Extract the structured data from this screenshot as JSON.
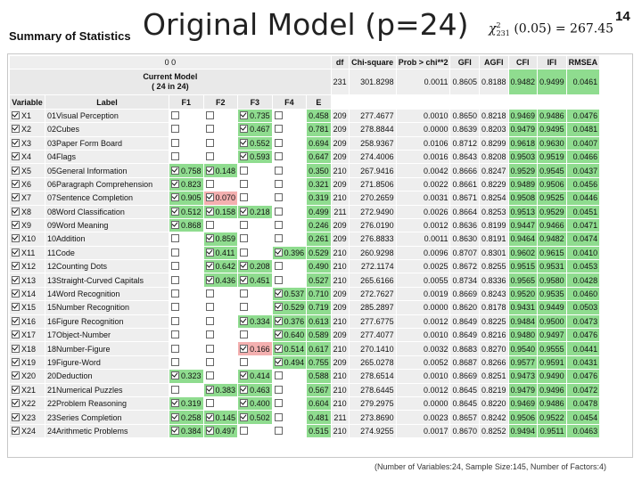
{
  "slide": {
    "title": "Original Model (p=24)",
    "page_number": "14"
  },
  "panel": {
    "title": "Summary of Statistics"
  },
  "formula": {
    "chi": "χ",
    "sub": "231",
    "sup": "2",
    "rest": "(0.05) = 267.45"
  },
  "header": {
    "row00": "0 0",
    "current_model": "Current Model",
    "current_model_sub": "( 24 in 24)",
    "variable": "Variable",
    "label": "Label",
    "factors": [
      "F1",
      "F2",
      "F3",
      "F4"
    ],
    "e": "E",
    "stat_cols": [
      "df",
      "Chi-square",
      "Prob > chi**2",
      "GFI",
      "AGFI",
      "CFI",
      "IFI",
      "RMSEA"
    ]
  },
  "current": {
    "df": "231",
    "chi": "301.8298",
    "prob": "0.0011",
    "gfi": "0.8605",
    "agfi": "0.8188",
    "cfi": "0.9482",
    "ifi": "0.9499",
    "rmsea": "0.0461"
  },
  "rows": [
    {
      "var": "X1",
      "label": "01Visual Perception",
      "f": [
        "",
        "",
        "0.735",
        ""
      ],
      "e": "0.458",
      "df": "209",
      "chi": "277.4677",
      "prob": "0.0010",
      "gfi": "0.8650",
      "agfi": "0.8218",
      "cfi": "0.9469",
      "ifi": "0.9486",
      "rmsea": "0.0476"
    },
    {
      "var": "X2",
      "label": "02Cubes",
      "f": [
        "",
        "",
        "0.467",
        ""
      ],
      "e": "0.781",
      "df": "209",
      "chi": "278.8844",
      "prob": "0.0000",
      "gfi": "0.8639",
      "agfi": "0.8203",
      "cfi": "0.9479",
      "ifi": "0.9495",
      "rmsea": "0.0481"
    },
    {
      "var": "X3",
      "label": "03Paper Form Board",
      "f": [
        "",
        "",
        "0.552",
        ""
      ],
      "e": "0.694",
      "df": "209",
      "chi": "258.9367",
      "prob": "0.0106",
      "gfi": "0.8712",
      "agfi": "0.8299",
      "cfi": "0.9618",
      "ifi": "0.9630",
      "rmsea": "0.0407"
    },
    {
      "var": "X4",
      "label": "04Flags",
      "f": [
        "",
        "",
        "0.593",
        ""
      ],
      "e": "0.647",
      "df": "209",
      "chi": "274.4006",
      "prob": "0.0016",
      "gfi": "0.8643",
      "agfi": "0.8208",
      "cfi": "0.9503",
      "ifi": "0.9519",
      "rmsea": "0.0466"
    },
    {
      "var": "X5",
      "label": "05General Information",
      "f": [
        "0.758",
        "0.148",
        "",
        ""
      ],
      "e": "0.350",
      "df": "210",
      "chi": "267.9416",
      "prob": "0.0042",
      "gfi": "0.8666",
      "agfi": "0.8247",
      "cfi": "0.9529",
      "ifi": "0.9545",
      "rmsea": "0.0437"
    },
    {
      "var": "X6",
      "label": "06Paragraph Comprehension",
      "f": [
        "0.823",
        "",
        "",
        ""
      ],
      "e": "0.321",
      "df": "209",
      "chi": "271.8506",
      "prob": "0.0022",
      "gfi": "0.8661",
      "agfi": "0.8229",
      "cfi": "0.9489",
      "ifi": "0.9506",
      "rmsea": "0.0456"
    },
    {
      "var": "X7",
      "label": "07Sentence Completion",
      "f": [
        "0.905",
        "0.070",
        "",
        ""
      ],
      "e": "0.319",
      "df": "210",
      "chi": "270.2659",
      "prob": "0.0031",
      "gfi": "0.8671",
      "agfi": "0.8254",
      "cfi": "0.9508",
      "ifi": "0.9525",
      "rmsea": "0.0446"
    },
    {
      "var": "X8",
      "label": "08Word Classification",
      "f": [
        "0.512",
        "0.158",
        "0.218",
        ""
      ],
      "e": "0.499",
      "df": "211",
      "chi": "272.9490",
      "prob": "0.0026",
      "gfi": "0.8664",
      "agfi": "0.8253",
      "cfi": "0.9513",
      "ifi": "0.9529",
      "rmsea": "0.0451"
    },
    {
      "var": "X9",
      "label": "09Word Meaning",
      "f": [
        "0.868",
        "",
        "",
        ""
      ],
      "e": "0.246",
      "df": "209",
      "chi": "276.0190",
      "prob": "0.0012",
      "gfi": "0.8636",
      "agfi": "0.8199",
      "cfi": "0.9447",
      "ifi": "0.9466",
      "rmsea": "0.0471"
    },
    {
      "var": "X10",
      "label": "10Addition",
      "f": [
        "",
        "0.859",
        "",
        ""
      ],
      "e": "0.261",
      "df": "209",
      "chi": "276.8833",
      "prob": "0.0011",
      "gfi": "0.8630",
      "agfi": "0.8191",
      "cfi": "0.9464",
      "ifi": "0.9482",
      "rmsea": "0.0474"
    },
    {
      "var": "X11",
      "label": "11Code",
      "f": [
        "",
        "0.411",
        "",
        "0.396"
      ],
      "e": "0.529",
      "df": "210",
      "chi": "260.9298",
      "prob": "0.0096",
      "gfi": "0.8707",
      "agfi": "0.8301",
      "cfi": "0.9602",
      "ifi": "0.9615",
      "rmsea": "0.0410"
    },
    {
      "var": "X12",
      "label": "12Counting Dots",
      "f": [
        "",
        "0.642",
        "0.208",
        ""
      ],
      "e": "0.490",
      "df": "210",
      "chi": "272.1174",
      "prob": "0.0025",
      "gfi": "0.8672",
      "agfi": "0.8255",
      "cfi": "0.9515",
      "ifi": "0.9531",
      "rmsea": "0.0453"
    },
    {
      "var": "X13",
      "label": "13Straight-Curved Capitals",
      "f": [
        "",
        "0.436",
        "0.451",
        ""
      ],
      "e": "0.527",
      "df": "210",
      "chi": "265.6166",
      "prob": "0.0055",
      "gfi": "0.8734",
      "agfi": "0.8336",
      "cfi": "0.9565",
      "ifi": "0.9580",
      "rmsea": "0.0428"
    },
    {
      "var": "X14",
      "label": "14Word Recognition",
      "f": [
        "",
        "",
        "",
        "0.537"
      ],
      "e": "0.710",
      "df": "209",
      "chi": "272.7627",
      "prob": "0.0019",
      "gfi": "0.8669",
      "agfi": "0.8243",
      "cfi": "0.9520",
      "ifi": "0.9535",
      "rmsea": "0.0460"
    },
    {
      "var": "X15",
      "label": "15Number Recognition",
      "f": [
        "",
        "",
        "",
        "0.529"
      ],
      "e": "0.719",
      "df": "209",
      "chi": "285.2897",
      "prob": "0.0000",
      "gfi": "0.8620",
      "agfi": "0.8178",
      "cfi": "0.9431",
      "ifi": "0.9449",
      "rmsea": "0.0503"
    },
    {
      "var": "X16",
      "label": "16Figure Recognition",
      "f": [
        "",
        "",
        "0.334",
        "0.376"
      ],
      "e": "0.613",
      "df": "210",
      "chi": "277.6775",
      "prob": "0.0012",
      "gfi": "0.8649",
      "agfi": "0.8225",
      "cfi": "0.9484",
      "ifi": "0.9500",
      "rmsea": "0.0473"
    },
    {
      "var": "X17",
      "label": "17Object-Number",
      "f": [
        "",
        "",
        "",
        "0.640"
      ],
      "e": "0.589",
      "df": "209",
      "chi": "277.4077",
      "prob": "0.0010",
      "gfi": "0.8649",
      "agfi": "0.8216",
      "cfi": "0.9480",
      "ifi": "0.9497",
      "rmsea": "0.0476"
    },
    {
      "var": "X18",
      "label": "18Number-Figure",
      "f": [
        "",
        "",
        "0.166",
        "0.514"
      ],
      "e": "0.617",
      "df": "210",
      "chi": "270.1410",
      "prob": "0.0032",
      "gfi": "0.8683",
      "agfi": "0.8270",
      "cfi": "0.9540",
      "ifi": "0.9555",
      "rmsea": "0.0441"
    },
    {
      "var": "X19",
      "label": "19Figure-Word",
      "f": [
        "",
        "",
        "",
        "0.494"
      ],
      "e": "0.755",
      "df": "209",
      "chi": "265.0278",
      "prob": "0.0052",
      "gfi": "0.8687",
      "agfi": "0.8266",
      "cfi": "0.9577",
      "ifi": "0.9591",
      "rmsea": "0.0431"
    },
    {
      "var": "X20",
      "label": "20Deduction",
      "f": [
        "0.323",
        "",
        "0.414",
        ""
      ],
      "e": "0.588",
      "df": "210",
      "chi": "278.6514",
      "prob": "0.0010",
      "gfi": "0.8669",
      "agfi": "0.8251",
      "cfi": "0.9473",
      "ifi": "0.9490",
      "rmsea": "0.0476"
    },
    {
      "var": "X21",
      "label": "21Numerical Puzzles",
      "f": [
        "",
        "0.383",
        "0.463",
        ""
      ],
      "e": "0.567",
      "df": "210",
      "chi": "278.6445",
      "prob": "0.0012",
      "gfi": "0.8645",
      "agfi": "0.8219",
      "cfi": "0.9479",
      "ifi": "0.9496",
      "rmsea": "0.0472"
    },
    {
      "var": "X22",
      "label": "22Problem Reasoning",
      "f": [
        "0.319",
        "",
        "0.400",
        ""
      ],
      "e": "0.604",
      "df": "210",
      "chi": "279.2975",
      "prob": "0.0000",
      "gfi": "0.8645",
      "agfi": "0.8220",
      "cfi": "0.9469",
      "ifi": "0.9486",
      "rmsea": "0.0478"
    },
    {
      "var": "X23",
      "label": "23Series Completion",
      "f": [
        "0.258",
        "0.145",
        "0.502",
        ""
      ],
      "e": "0.481",
      "df": "211",
      "chi": "273.8690",
      "prob": "0.0023",
      "gfi": "0.8657",
      "agfi": "0.8242",
      "cfi": "0.9506",
      "ifi": "0.9522",
      "rmsea": "0.0454"
    },
    {
      "var": "X24",
      "label": "24Arithmetic Problems",
      "f": [
        "0.384",
        "0.497",
        "",
        ""
      ],
      "e": "0.515",
      "df": "210",
      "chi": "274.9255",
      "prob": "0.0017",
      "gfi": "0.8670",
      "agfi": "0.8252",
      "cfi": "0.9494",
      "ifi": "0.9511",
      "rmsea": "0.0463"
    }
  ],
  "footnote": "(Number of Variables:24, Sample Size:145, Number of Factors:4)",
  "colors": {
    "highlight": "#8fdc8f",
    "negative": "#f4b0b0",
    "header_bg": "#e9e9e9",
    "cell_bg": "#eeeeee"
  }
}
